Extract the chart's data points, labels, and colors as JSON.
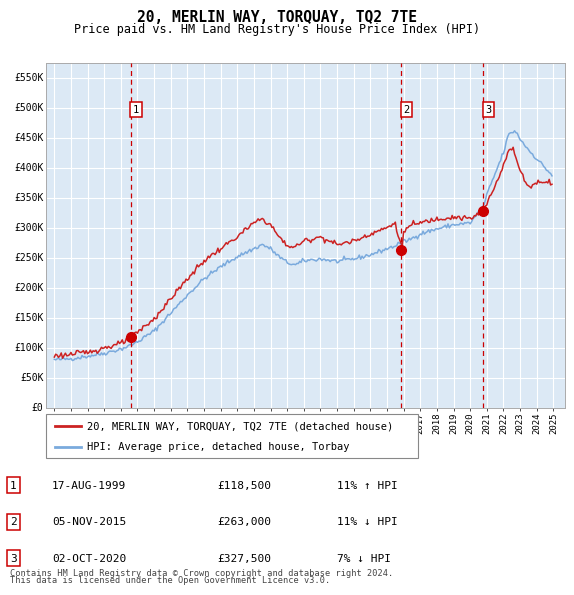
{
  "title": "20, MERLIN WAY, TORQUAY, TQ2 7TE",
  "subtitle": "Price paid vs. HM Land Registry's House Price Index (HPI)",
  "legend_line1": "20, MERLIN WAY, TORQUAY, TQ2 7TE (detached house)",
  "legend_line2": "HPI: Average price, detached house, Torbay",
  "sale_dates": [
    "1999-08-17",
    "2015-11-05",
    "2020-10-02"
  ],
  "sale_prices": [
    118500,
    263000,
    327500
  ],
  "sale_labels": [
    "1",
    "2",
    "3"
  ],
  "sale_annotations": [
    "17-AUG-1999",
    "05-NOV-2015",
    "02-OCT-2020"
  ],
  "sale_price_labels": [
    "£118,500",
    "£263,000",
    "£327,500"
  ],
  "sale_hpi_notes": [
    "11% ↑ HPI",
    "11% ↓ HPI",
    "7% ↓ HPI"
  ],
  "footer_line1": "Contains HM Land Registry data © Crown copyright and database right 2024.",
  "footer_line2": "This data is licensed under the Open Government Licence v3.0.",
  "hpi_line_color": "#7aaadd",
  "price_line_color": "#cc2222",
  "dot_color": "#cc0000",
  "vline_color": "#cc0000",
  "bg_color": "#dce9f5",
  "grid_color": "#ffffff",
  "ylim": [
    0,
    575000
  ],
  "yticks": [
    0,
    50000,
    100000,
    150000,
    200000,
    250000,
    300000,
    350000,
    400000,
    450000,
    500000,
    550000
  ],
  "ytick_labels": [
    "£0",
    "£50K",
    "£100K",
    "£150K",
    "£200K",
    "£250K",
    "£300K",
    "£350K",
    "£400K",
    "£450K",
    "£500K",
    "£550K"
  ],
  "xlim_start": 1994.5,
  "xlim_end": 2025.7
}
